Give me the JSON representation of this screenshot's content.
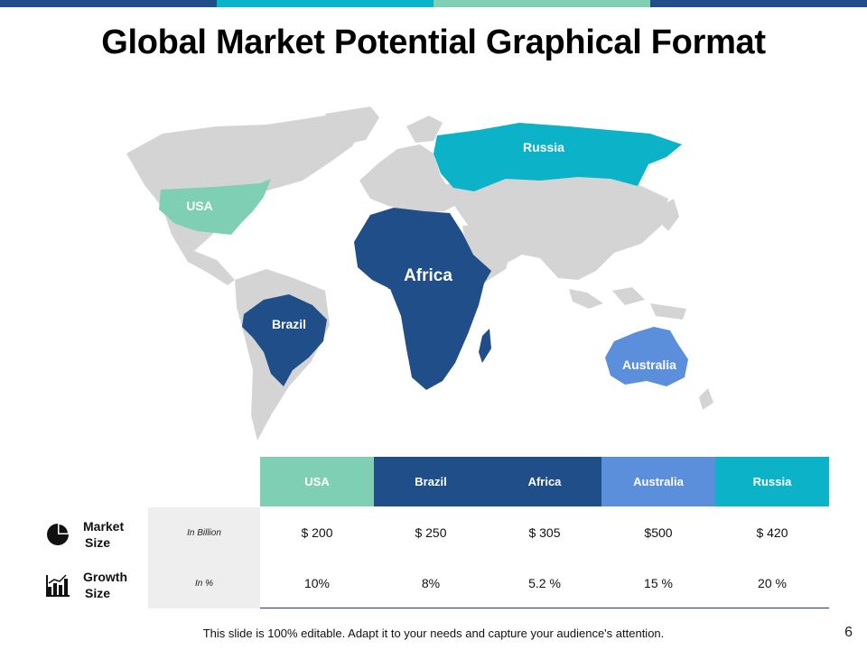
{
  "slide": {
    "title": "Global Market Potential Graphical Format",
    "footer": "This slide is 100% editable. Adapt it to your needs and capture your audience's attention.",
    "page_number": "6"
  },
  "colors": {
    "usa": "#7fcfb4",
    "brazil": "#1f4e89",
    "africa": "#1f4e89",
    "australia": "#5b8fdc",
    "russia": "#0bb2c8",
    "land": "#d4d4d4",
    "top_bar": [
      "#1f4e89",
      "#0bb2c8",
      "#7fcfb4",
      "#1f4e89"
    ]
  },
  "map": {
    "labels": {
      "usa": "USA",
      "brazil": "Brazil",
      "africa": "Africa",
      "australia": "Australia",
      "russia": "Russia"
    }
  },
  "table": {
    "columns": [
      "USA",
      "Brazil",
      "Africa",
      "Australia",
      "Russia"
    ],
    "rows": [
      {
        "label_line1": "Market",
        "label_line2": "Size",
        "icon": "pie-chart-icon",
        "unit": "In Billion",
        "values": [
          "$ 200",
          "$ 250",
          "$ 305",
          "$500",
          "$ 420"
        ]
      },
      {
        "label_line1": "Growth",
        "label_line2": "Size",
        "icon": "bar-chart-icon",
        "unit": "In %",
        "values": [
          "10%",
          "8%",
          "5.2 %",
          "15 %",
          "20 %"
        ]
      }
    ]
  }
}
